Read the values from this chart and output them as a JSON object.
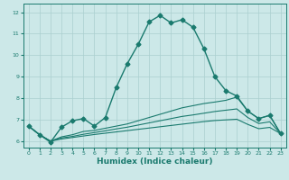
{
  "xlabel": "Humidex (Indice chaleur)",
  "bg_color": "#cce8e8",
  "line_color": "#1a7a6e",
  "grid_color": "#aacfcf",
  "xlim": [
    -0.5,
    23.5
  ],
  "ylim": [
    5.7,
    12.4
  ],
  "xticks": [
    0,
    1,
    2,
    3,
    4,
    5,
    6,
    7,
    8,
    9,
    10,
    11,
    12,
    13,
    14,
    15,
    16,
    17,
    18,
    19,
    20,
    21,
    22,
    23
  ],
  "yticks": [
    6,
    7,
    8,
    9,
    10,
    11,
    12
  ],
  "series": [
    {
      "x": [
        0,
        1,
        2,
        3,
        4,
        5,
        6,
        7,
        8,
        9,
        10,
        11,
        12,
        13,
        14,
        15,
        16,
        17,
        18,
        19,
        20,
        21,
        22,
        23
      ],
      "y": [
        6.7,
        6.3,
        5.95,
        6.65,
        6.95,
        7.05,
        6.7,
        7.1,
        8.5,
        9.6,
        10.5,
        11.55,
        11.85,
        11.5,
        11.65,
        11.3,
        10.3,
        9.0,
        8.35,
        8.1,
        7.4,
        7.05,
        7.2,
        6.35
      ],
      "marker": "D",
      "markersize": 2.5,
      "linewidth": 1.0,
      "zorder": 4
    },
    {
      "x": [
        0,
        1,
        2,
        3,
        4,
        5,
        6,
        7,
        8,
        9,
        10,
        11,
        12,
        13,
        14,
        15,
        16,
        17,
        18,
        19,
        20,
        21,
        22,
        23
      ],
      "y": [
        6.7,
        6.3,
        6.0,
        6.2,
        6.3,
        6.45,
        6.5,
        6.6,
        6.7,
        6.8,
        6.95,
        7.1,
        7.25,
        7.4,
        7.55,
        7.65,
        7.75,
        7.82,
        7.9,
        8.05,
        7.4,
        7.05,
        7.2,
        6.35
      ],
      "marker": null,
      "linewidth": 0.8,
      "zorder": 3
    },
    {
      "x": [
        0,
        1,
        2,
        3,
        4,
        5,
        6,
        7,
        8,
        9,
        10,
        11,
        12,
        13,
        14,
        15,
        16,
        17,
        18,
        19,
        20,
        21,
        22,
        23
      ],
      "y": [
        6.7,
        6.3,
        6.0,
        6.15,
        6.22,
        6.32,
        6.4,
        6.48,
        6.57,
        6.65,
        6.75,
        6.85,
        6.95,
        7.05,
        7.15,
        7.22,
        7.3,
        7.38,
        7.44,
        7.5,
        7.1,
        6.82,
        6.9,
        6.35
      ],
      "marker": null,
      "linewidth": 0.8,
      "zorder": 3
    },
    {
      "x": [
        0,
        1,
        2,
        3,
        4,
        5,
        6,
        7,
        8,
        9,
        10,
        11,
        12,
        13,
        14,
        15,
        16,
        17,
        18,
        19,
        20,
        21,
        22,
        23
      ],
      "y": [
        6.7,
        6.3,
        6.0,
        6.1,
        6.17,
        6.24,
        6.31,
        6.37,
        6.43,
        6.49,
        6.55,
        6.61,
        6.67,
        6.73,
        6.79,
        6.85,
        6.91,
        6.96,
        6.99,
        7.02,
        6.78,
        6.58,
        6.64,
        6.35
      ],
      "marker": null,
      "linewidth": 0.8,
      "zorder": 3
    }
  ]
}
